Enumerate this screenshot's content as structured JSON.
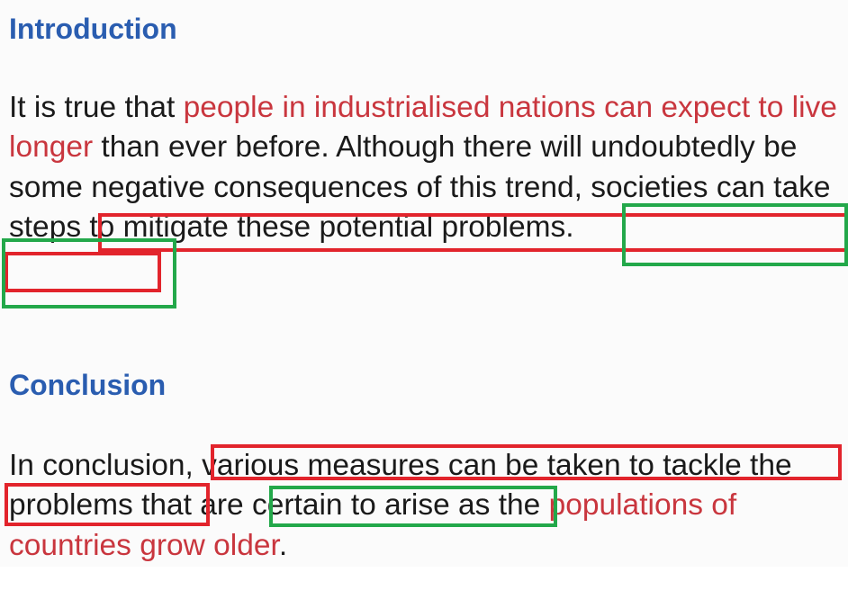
{
  "introduction": {
    "heading": "Introduction",
    "segments": [
      "It is true that ",
      "people in industrialised nations can expect to live longer",
      " than ever before. Although there will undoubtedly be some negative consequences of this trend, societies can take steps to mitigate these potential problems."
    ]
  },
  "conclusion": {
    "heading": "Conclusion",
    "segments": [
      "In conclusion, various measures can be taken to tackle the problems that are certain to arise as the ",
      "populations of countries grow older",
      "."
    ]
  },
  "colors": {
    "heading": "#2a5db0",
    "highlight_text": "#c9363e",
    "body_text": "#1a1a1a",
    "red_box": "#e2242c",
    "green_box": "#23a84a"
  }
}
